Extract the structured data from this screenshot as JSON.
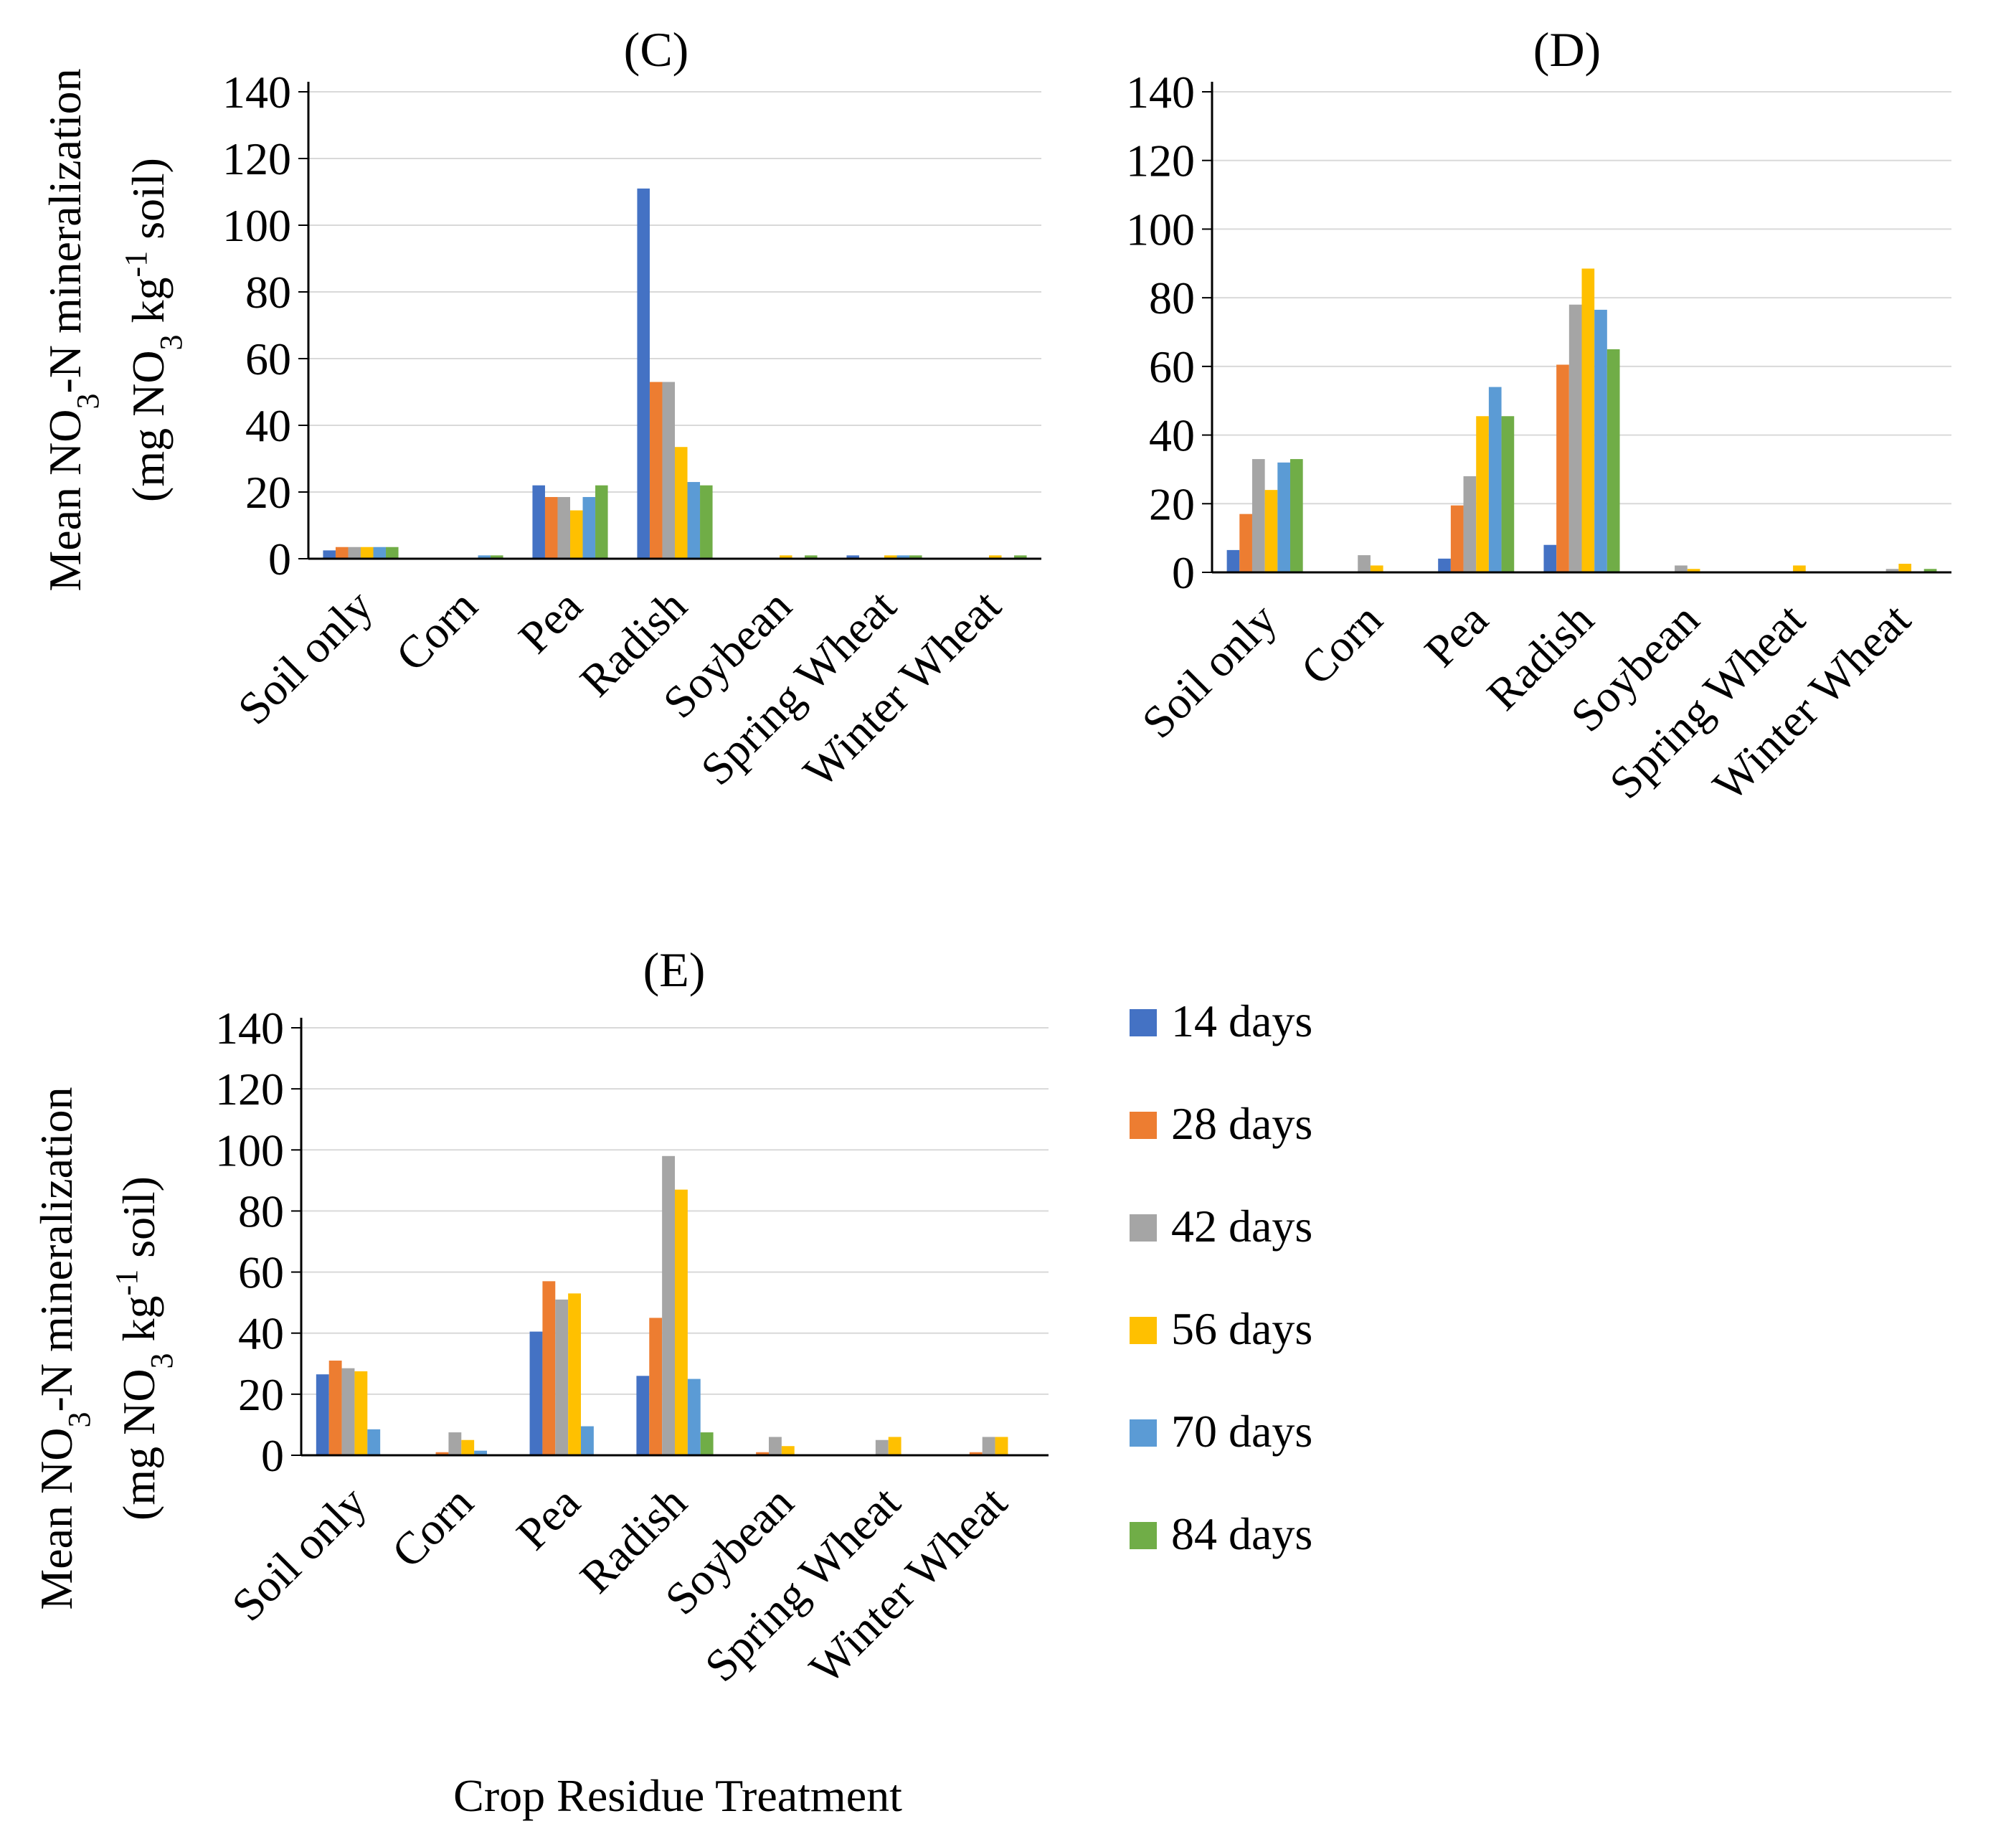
{
  "figure": {
    "x_axis_label": "Crop Residue Treatment"
  },
  "y_axis_label": {
    "line1": "Mean NO3-N  mineralization",
    "line2": "(mg NO3 kg-1 soil)"
  },
  "legend": {
    "entries": [
      {
        "label": "14 days",
        "color": "#4472C4"
      },
      {
        "label": "28 days",
        "color": "#ED7D31"
      },
      {
        "label": "42 days",
        "color": "#A5A5A5"
      },
      {
        "label": "56 days",
        "color": "#FFC000"
      },
      {
        "label": "70 days",
        "color": "#5B9BD5"
      },
      {
        "label": "84 days",
        "color": "#70AD47"
      }
    ]
  },
  "chart_data": [
    {
      "type": "bar",
      "title": "(C)",
      "categories": [
        "Soil only",
        "Corn",
        "Pea",
        "Radish",
        "Soybean",
        "Spring Wheat",
        "Winter Wheat"
      ],
      "ylim": [
        0,
        140
      ],
      "yticks": [
        0,
        20,
        40,
        60,
        80,
        100,
        120,
        140
      ],
      "ylabel": "Mean NO3-N  mineralization (mg NO3 kg-1 soil)",
      "xlabel": "",
      "series": [
        {
          "name": "14 days",
          "values": [
            2.5,
            0,
            22,
            111,
            0,
            1,
            0
          ]
        },
        {
          "name": "28 days",
          "values": [
            3.5,
            0,
            18.5,
            53,
            0,
            0,
            0
          ]
        },
        {
          "name": "42 days",
          "values": [
            3.5,
            0,
            18.5,
            53,
            0,
            0,
            0
          ]
        },
        {
          "name": "56 days",
          "values": [
            3.5,
            0,
            14.5,
            33.5,
            1,
            1,
            1
          ]
        },
        {
          "name": "70 days",
          "values": [
            3.5,
            1,
            18.5,
            23,
            0,
            1,
            0
          ]
        },
        {
          "name": "84 days",
          "values": [
            3.5,
            1,
            22,
            22,
            1,
            1,
            1
          ]
        }
      ]
    },
    {
      "type": "bar",
      "title": "(D)",
      "categories": [
        "Soil only",
        "Corn",
        "Pea",
        "Radish",
        "Soybean",
        "Spring Wheat",
        "Winter Wheat"
      ],
      "ylim": [
        0,
        140
      ],
      "yticks": [
        0,
        20,
        40,
        60,
        80,
        100,
        120,
        140
      ],
      "ylabel": "",
      "xlabel": "",
      "series": [
        {
          "name": "14 days",
          "values": [
            6.5,
            0,
            4,
            8,
            0,
            0,
            0
          ]
        },
        {
          "name": "28 days",
          "values": [
            17,
            0,
            19.5,
            60.5,
            0,
            0,
            0
          ]
        },
        {
          "name": "42 days",
          "values": [
            33,
            5,
            28,
            78,
            2,
            0,
            1
          ]
        },
        {
          "name": "56 days",
          "values": [
            24,
            2,
            45.5,
            88.5,
            1,
            2,
            2.5
          ]
        },
        {
          "name": "70 days",
          "values": [
            32,
            0,
            54,
            76.5,
            0,
            0,
            0
          ]
        },
        {
          "name": "84 days",
          "values": [
            33,
            0,
            45.5,
            65,
            0,
            0,
            1
          ]
        }
      ]
    },
    {
      "type": "bar",
      "title": "(E)",
      "categories": [
        "Soil only",
        "Corn",
        "Pea",
        "Radish",
        "Soybean",
        "Spring Wheat",
        "Winter Wheat"
      ],
      "ylim": [
        0,
        140
      ],
      "yticks": [
        0,
        20,
        40,
        60,
        80,
        100,
        120,
        140
      ],
      "ylabel": "Mean NO3-N  mineralization (mg NO3 kg-1 soil)",
      "xlabel": "Crop Residue Treatment",
      "series": [
        {
          "name": "14 days",
          "values": [
            26.5,
            0,
            40.5,
            26,
            0,
            0,
            0
          ]
        },
        {
          "name": "28 days",
          "values": [
            31,
            1,
            57,
            45,
            1,
            0,
            1
          ]
        },
        {
          "name": "42 days",
          "values": [
            28.5,
            7.5,
            51,
            98,
            6,
            5,
            6
          ]
        },
        {
          "name": "56 days",
          "values": [
            27.5,
            5,
            53,
            87,
            3,
            6,
            6
          ]
        },
        {
          "name": "70 days",
          "values": [
            8.5,
            1.5,
            9.5,
            25,
            0,
            0,
            0
          ]
        },
        {
          "name": "84 days",
          "values": [
            0,
            0,
            0,
            7.5,
            0,
            0,
            0
          ]
        }
      ]
    }
  ]
}
